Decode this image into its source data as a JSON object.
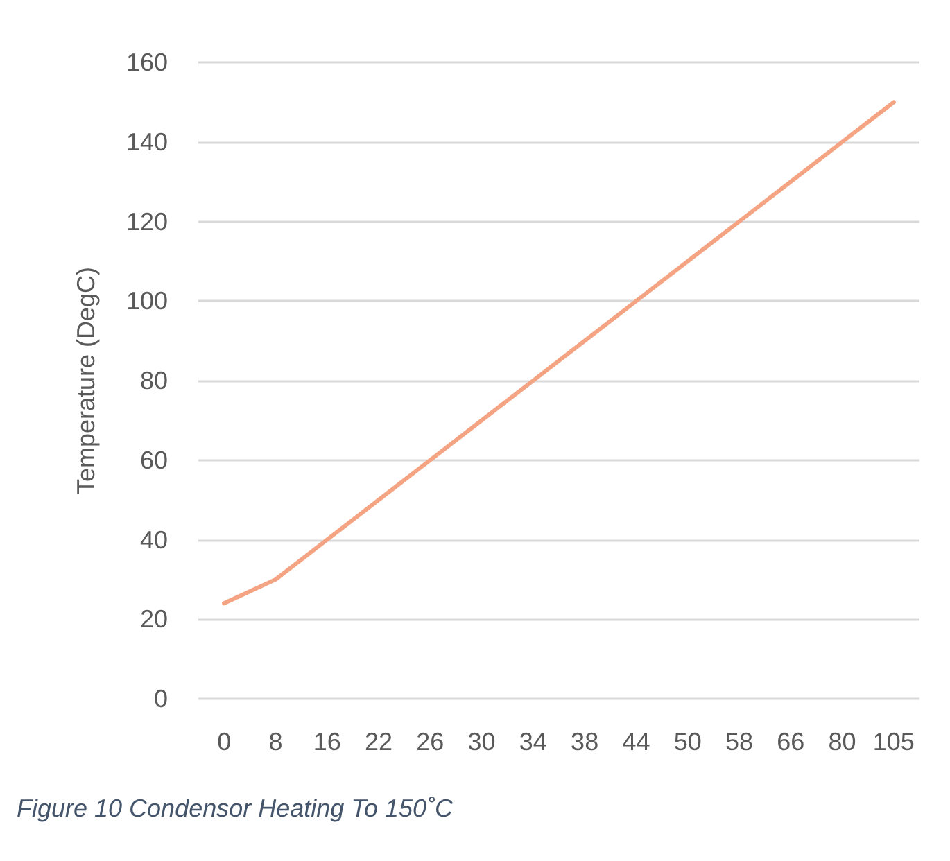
{
  "chart_data": {
    "type": "line",
    "ylabel": "Temperature (DegC)",
    "annotations": [
      "Figure 10 Condensor Heating To 150˚C"
    ],
    "categories": [
      "0",
      "8",
      "16",
      "22",
      "26",
      "30",
      "34",
      "38",
      "44",
      "50",
      "58",
      "66",
      "80",
      "105"
    ],
    "series": [
      {
        "color": "#f4a383",
        "values": [
          24,
          30,
          40,
          50,
          60,
          70,
          80,
          90,
          100,
          110,
          120,
          130,
          140,
          150
        ]
      }
    ],
    "ylim": [
      0,
      160
    ],
    "yticks": [
      0,
      20,
      40,
      60,
      80,
      100,
      120,
      140,
      160
    ],
    "grid": "y",
    "marker": "none",
    "line_style": "solid"
  }
}
